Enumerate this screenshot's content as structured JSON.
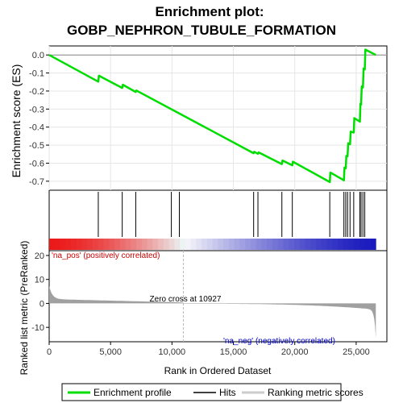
{
  "chart_data": {
    "type": "line",
    "title_line1": "Enrichment plot:",
    "title_line2": "GOBP_NEPHRON_TUBULE_FORMATION",
    "es_panel": {
      "ylabel": "Enrichment score (ES)",
      "ylim": [
        -0.75,
        0.05
      ],
      "yticks": [
        -0.7,
        -0.6,
        -0.5,
        -0.4,
        -0.3,
        -0.2,
        -0.1,
        0.0
      ],
      "ytick_labels": [
        "-0.7",
        "-0.6",
        "-0.5",
        "-0.4",
        "-0.3",
        "-0.2",
        "-0.1",
        "0.0"
      ],
      "profile_points": [
        [
          0,
          0.0
        ],
        [
          4000,
          -0.148
        ],
        [
          4050,
          -0.115
        ],
        [
          5950,
          -0.183
        ],
        [
          6000,
          -0.165
        ],
        [
          7050,
          -0.205
        ],
        [
          7100,
          -0.197
        ],
        [
          16650,
          -0.545
        ],
        [
          16700,
          -0.537
        ],
        [
          17000,
          -0.548
        ],
        [
          17050,
          -0.54
        ],
        [
          18950,
          -0.605
        ],
        [
          19000,
          -0.585
        ],
        [
          19800,
          -0.612
        ],
        [
          19850,
          -0.592
        ],
        [
          22850,
          -0.705
        ],
        [
          22900,
          -0.652
        ],
        [
          24000,
          -0.695
        ],
        [
          24050,
          -0.625
        ],
        [
          24150,
          -0.628
        ],
        [
          24200,
          -0.56
        ],
        [
          24300,
          -0.562
        ],
        [
          24350,
          -0.49
        ],
        [
          24500,
          -0.495
        ],
        [
          24550,
          -0.425
        ],
        [
          24800,
          -0.43
        ],
        [
          24850,
          -0.35
        ],
        [
          25300,
          -0.37
        ],
        [
          25350,
          -0.27
        ],
        [
          25400,
          -0.275
        ],
        [
          25450,
          -0.175
        ],
        [
          25550,
          -0.18
        ],
        [
          25600,
          -0.075
        ],
        [
          25700,
          -0.08
        ],
        [
          25750,
          0.03
        ],
        [
          26600,
          0.0
        ]
      ],
      "line_color": "#00dd00"
    },
    "hits": [
      4000,
      5950,
      7050,
      9950,
      10600,
      16650,
      17000,
      18950,
      19800,
      22850,
      24000,
      24150,
      24300,
      24500,
      24800,
      25300,
      25400,
      25550,
      25700
    ],
    "ranked_metric": {
      "ylabel": "Ranked list metric (PreRanked)",
      "ylim": [
        -16,
        22
      ],
      "yticks": [
        -10,
        0,
        10,
        20
      ],
      "ytick_labels": [
        "-10",
        "0",
        "10",
        "20"
      ],
      "zero_cross_rank": 10927,
      "zero_cross_label": "Zero cross at 10927",
      "pos_label": "'na_pos' (positively correlated)",
      "neg_label": "'na_neg' (negatively correlated)",
      "pos_color": "#cc0000",
      "neg_color": "#0000cc",
      "fill_color": "#a0a0a0"
    },
    "xaxis": {
      "xlabel": "Rank in Ordered Dataset",
      "xlim": [
        0,
        27500
      ],
      "n_ranks": 26600,
      "xticks": [
        0,
        5000,
        10000,
        15000,
        20000,
        25000
      ],
      "xtick_labels": [
        "0",
        "5,000",
        "10,000",
        "15,000",
        "20,000",
        "25,000"
      ]
    },
    "legend": {
      "placement": "bottom",
      "entries": [
        {
          "label": "Enrichment profile",
          "color": "#00dd00"
        },
        {
          "label": "Hits",
          "color": "#000000"
        },
        {
          "label": "Ranking metric scores",
          "color": "#cccccc"
        }
      ]
    }
  }
}
